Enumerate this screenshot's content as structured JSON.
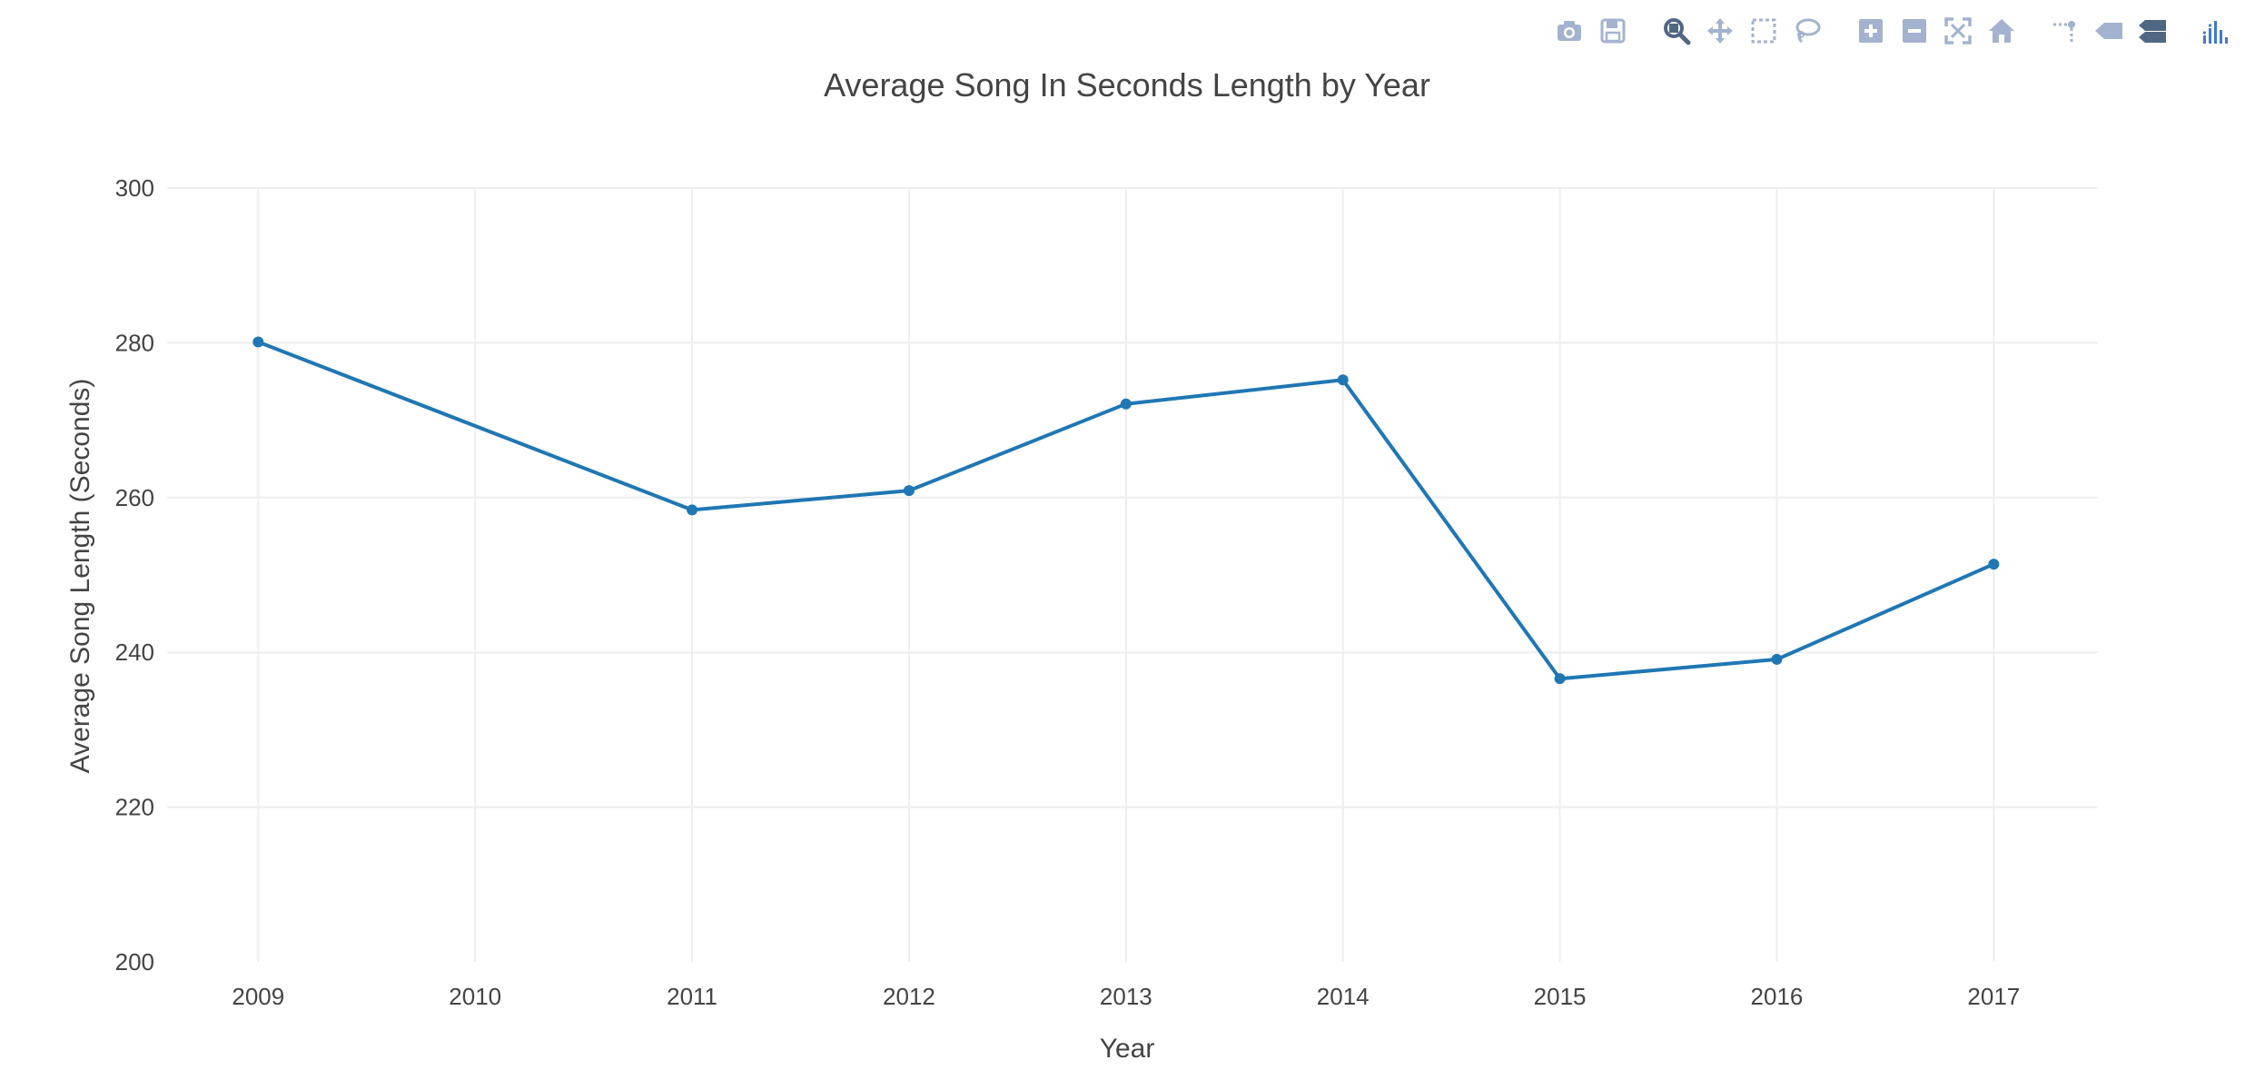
{
  "toolbar": {
    "buttons": [
      {
        "name": "camera-icon",
        "group": 0
      },
      {
        "name": "save-icon",
        "group": 0
      },
      {
        "name": "zoom-icon",
        "group": 1
      },
      {
        "name": "pan-icon",
        "group": 1
      },
      {
        "name": "box-select-icon",
        "group": 1
      },
      {
        "name": "lasso-select-icon",
        "group": 1
      },
      {
        "name": "zoom-in-icon",
        "group": 2
      },
      {
        "name": "zoom-out-icon",
        "group": 2
      },
      {
        "name": "autoscale-icon",
        "group": 2
      },
      {
        "name": "reset-axes-icon",
        "group": 2
      },
      {
        "name": "spike-lines-icon",
        "group": 3
      },
      {
        "name": "hover-closest-icon",
        "group": 3
      },
      {
        "name": "hover-compare-icon",
        "group": 3
      },
      {
        "name": "plotly-logo-icon",
        "group": 4
      }
    ],
    "icon_color": "#a3b3cf",
    "active_icon_color": "#506784",
    "logo_color": "#3f7ad1"
  },
  "chart_data": {
    "type": "line",
    "title": "Average Song In Seconds Length by Year",
    "xlabel": "Year",
    "ylabel": "Average Song Length (Seconds)",
    "x_ticks": [
      "2009",
      "2010",
      "2011",
      "2012",
      "2013",
      "2014",
      "2015",
      "2016",
      "2017"
    ],
    "y_ticks": [
      200,
      220,
      240,
      260,
      280,
      300
    ],
    "ylim": [
      200,
      300
    ],
    "xlim": [
      2008.58,
      2017.48
    ],
    "grid": true,
    "series": [
      {
        "x": [
          2009,
          2011,
          2012,
          2013,
          2014,
          2015,
          2016,
          2017
        ],
        "y": [
          280.1,
          258.4,
          260.9,
          272.1,
          275.2,
          236.6,
          239.1,
          251.4
        ],
        "color": "#1f77b4",
        "mode": "lines+markers"
      }
    ],
    "colors": {
      "grid": "#eeeeee",
      "text": "#444444",
      "line": "#1f77b4"
    }
  }
}
